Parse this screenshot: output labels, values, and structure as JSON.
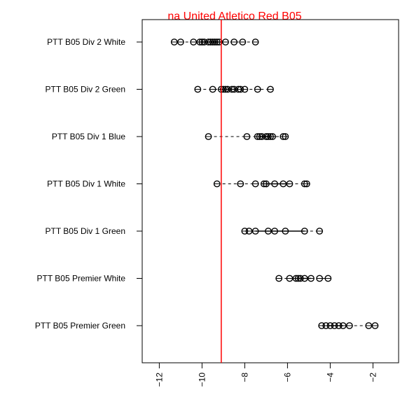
{
  "chart_data": {
    "type": "box",
    "title": "na United Atletico Red B05",
    "xlabel": "",
    "ylabel": "",
    "xlim": [
      -12.8,
      -0.8
    ],
    "reference_line": -9.1,
    "categories": [
      "PTT B05 Div 2 White",
      "PTT B05 Div 2 Green",
      "PTT B05 Div 1 Blue",
      "PTT B05 Div 1 White",
      "PTT B05 Div 1 Green",
      "PTT B05 Premier White",
      "PTT B05 Premier Green"
    ],
    "x_ticks": [
      -12,
      -10,
      -8,
      -6,
      -4,
      -2
    ],
    "boxes": [
      {
        "min": -11.3,
        "q1": -10.1,
        "median": -9.6,
        "q3": -9.2,
        "max": -7.5,
        "points": [
          -11.3,
          -11.0,
          -10.4,
          -10.1,
          -10.0,
          -9.9,
          -9.7,
          -9.6,
          -9.5,
          -9.4,
          -9.3,
          -9.2,
          -8.9,
          -8.5,
          -8.1,
          -7.5
        ]
      },
      {
        "min": -10.2,
        "q1": -9.0,
        "median": -8.7,
        "q3": -8.3,
        "max": -6.8,
        "points": [
          -10.2,
          -9.5,
          -9.1,
          -9.0,
          -8.9,
          -8.8,
          -8.6,
          -8.5,
          -8.3,
          -8.2,
          -8.0,
          -7.4,
          -6.8
        ]
      },
      {
        "min": -9.7,
        "q1": -7.3,
        "median": -7.0,
        "q3": -6.8,
        "max": -6.1,
        "points": [
          -9.7,
          -7.9,
          -7.4,
          -7.3,
          -7.2,
          -7.0,
          -6.9,
          -6.8,
          -6.7,
          -6.2,
          -6.1
        ]
      },
      {
        "min": -9.3,
        "q1": -7.1,
        "median": -6.6,
        "q3": -5.9,
        "max": -5.1,
        "points": [
          -9.3,
          -8.2,
          -7.5,
          -7.1,
          -7.0,
          -6.6,
          -6.2,
          -5.9,
          -5.2,
          -5.1
        ]
      },
      {
        "min": -8.0,
        "q1": -7.5,
        "median": -6.8,
        "q3": -5.2,
        "max": -4.5,
        "points": [
          -8.0,
          -7.8,
          -7.5,
          -6.9,
          -6.6,
          -6.1,
          -5.2,
          -4.5
        ]
      },
      {
        "min": -6.4,
        "q1": -5.6,
        "median": -5.5,
        "q3": -4.9,
        "max": -4.1,
        "points": [
          -6.4,
          -5.9,
          -5.6,
          -5.5,
          -5.4,
          -5.2,
          -4.9,
          -4.5,
          -4.1
        ]
      },
      {
        "min": -4.4,
        "q1": -4.1,
        "median": -3.8,
        "q3": -3.4,
        "max": -1.9,
        "points": [
          -4.4,
          -4.2,
          -4.0,
          -3.8,
          -3.6,
          -3.4,
          -3.1,
          -2.2,
          -1.9
        ]
      }
    ],
    "colors": {
      "points": "#000000",
      "reference_line": "#ff0000",
      "title": "#ff0000"
    }
  }
}
